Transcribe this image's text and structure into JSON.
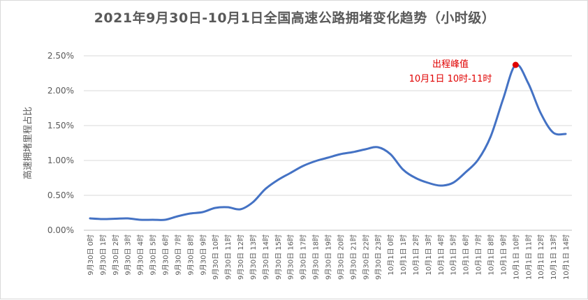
{
  "chart_data": {
    "type": "line",
    "title": "2021年9月30日-10月1日全国高速公路拥堵变化趋势（小时级）",
    "xlabel": "",
    "ylabel": "高速拥堵里程占比",
    "ylim": [
      0,
      2.5
    ],
    "yticks": [
      "0.00%",
      "0.50%",
      "1.00%",
      "1.50%",
      "2.00%",
      "2.50%"
    ],
    "grid": true,
    "categories": [
      "9月30日 0时",
      "9月30日 1时",
      "9月30日 2时",
      "9月30日 3时",
      "9月30日 4时",
      "9月30日 5时",
      "9月30日 6时",
      "9月30日 7时",
      "9月30日 8时",
      "9月30日 9时",
      "9月30日 10时",
      "9月30日 11时",
      "9月30日 12时",
      "9月30日 13时",
      "9月30日 14时",
      "9月30日 15时",
      "9月30日 16时",
      "9月30日 17时",
      "9月30日 18时",
      "9月30日 19时",
      "9月30日 20时",
      "9月30日 21时",
      "9月30日 22时",
      "9月30日 23时",
      "10月1日 0时",
      "10月1日 1时",
      "10月1日 2时",
      "10月1日 3时",
      "10月1日 4时",
      "10月1日 5时",
      "10月1日 6时",
      "10月1日 7时",
      "10月1日 8时",
      "10月1日 9时",
      "10月1日 10时",
      "10月1日 11时",
      "10月1日 12时",
      "10月1日 13时",
      "10月1日 14时"
    ],
    "series": [
      {
        "values": [
          0.17,
          0.16,
          0.165,
          0.17,
          0.15,
          0.15,
          0.15,
          0.2,
          0.24,
          0.26,
          0.32,
          0.33,
          0.3,
          0.4,
          0.59,
          0.72,
          0.82,
          0.92,
          0.99,
          1.04,
          1.09,
          1.12,
          1.16,
          1.19,
          1.09,
          0.87,
          0.75,
          0.68,
          0.64,
          0.68,
          0.83,
          1.01,
          1.34,
          1.88,
          2.37,
          2.11,
          1.68,
          1.4,
          1.38
        ],
        "color": "#4472c4"
      }
    ],
    "annotation": {
      "lines": [
        "出程峰值",
        "10月1日 10时-11时"
      ],
      "point_index": 34,
      "marker_color": "#e00000",
      "text_color": "#e00000"
    }
  }
}
